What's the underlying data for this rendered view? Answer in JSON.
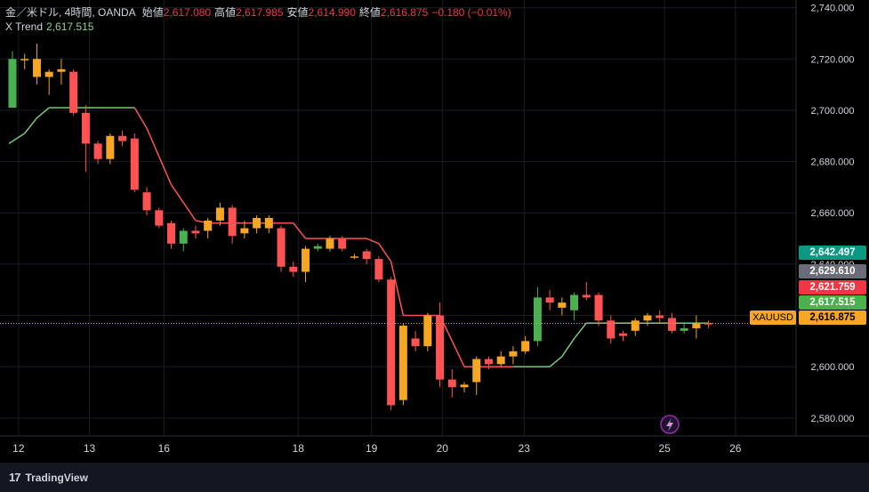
{
  "legend": {
    "symbol_title": "金／米ドル, 4時間, OANDA",
    "open_label": "始値",
    "open": "2,617.080",
    "high_label": "高値",
    "high": "2,617.985",
    "low_label": "安値",
    "low": "2,614.990",
    "close_label": "終値",
    "close": "2,616.875",
    "change": "−0.180 (−0.01%)",
    "indicator_name": "X Trend",
    "indicator_value": "2,617.515"
  },
  "price_labels": {
    "green": "2,642.497",
    "gray": "2,629.610",
    "red": "2,621.759",
    "trend": "2,617.515",
    "last": "2,616.875",
    "symbol": "XAUUSD"
  },
  "brand": {
    "logo": "17",
    "name": "TradingView"
  },
  "colors": {
    "up": "#4caf50",
    "down": "#ff5252",
    "neutral": "#f5a623",
    "trend_up": "#7bc97a",
    "trend_down": "#ff5252",
    "label_green": "#0b9981",
    "label_gray": "#6a6d78",
    "label_red": "#f23645",
    "label_trend": "#4caf50",
    "label_last": "#f5a623"
  },
  "chart_data": {
    "type": "candlestick",
    "ylim": [
      2573,
      2743
    ],
    "yticks": [
      2580,
      2600,
      2620,
      2640,
      2660,
      2680,
      2700,
      2720,
      2740
    ],
    "ytick_labels": [
      "2,580.000",
      "2,600.000",
      "2,620.000",
      "2,640.000",
      "2,660.000",
      "2,680.000",
      "2,700.000",
      "2,720.000",
      "2,740.000"
    ],
    "x_tick_labels": [
      {
        "label": "12",
        "index": 0.5
      },
      {
        "label": "13",
        "index": 6.3
      },
      {
        "label": "16",
        "index": 12.4
      },
      {
        "label": "18",
        "index": 23.4
      },
      {
        "label": "19",
        "index": 29.4
      },
      {
        "label": "20",
        "index": 35.2
      },
      {
        "label": "23",
        "index": 41.9
      },
      {
        "label": "25",
        "index": 53.4
      },
      {
        "label": "26",
        "index": 59.2
      }
    ],
    "candles": [
      {
        "o": 2701,
        "h": 2723,
        "l": 2701,
        "c": 2720,
        "k": "up"
      },
      {
        "o": 2720,
        "h": 2722,
        "l": 2716,
        "c": 2720,
        "k": "neutral"
      },
      {
        "o": 2720,
        "h": 2726,
        "l": 2710,
        "c": 2713,
        "k": "neutral"
      },
      {
        "o": 2713,
        "h": 2716,
        "l": 2706,
        "c": 2715,
        "k": "neutral"
      },
      {
        "o": 2715,
        "h": 2720,
        "l": 2710,
        "c": 2716,
        "k": "neutral"
      },
      {
        "o": 2715,
        "h": 2716,
        "l": 2698,
        "c": 2699,
        "k": "down"
      },
      {
        "o": 2699,
        "h": 2702,
        "l": 2676,
        "c": 2687,
        "k": "down"
      },
      {
        "o": 2687,
        "h": 2688,
        "l": 2679,
        "c": 2681,
        "k": "down"
      },
      {
        "o": 2681,
        "h": 2691,
        "l": 2679,
        "c": 2690,
        "k": "neutral"
      },
      {
        "o": 2690,
        "h": 2692,
        "l": 2686,
        "c": 2688,
        "k": "down"
      },
      {
        "o": 2689,
        "h": 2691,
        "l": 2668,
        "c": 2669,
        "k": "down"
      },
      {
        "o": 2668,
        "h": 2670,
        "l": 2659,
        "c": 2661,
        "k": "down"
      },
      {
        "o": 2661,
        "h": 2662,
        "l": 2654,
        "c": 2655,
        "k": "down"
      },
      {
        "o": 2656,
        "h": 2657,
        "l": 2646,
        "c": 2648,
        "k": "down"
      },
      {
        "o": 2648,
        "h": 2654,
        "l": 2645,
        "c": 2653,
        "k": "up"
      },
      {
        "o": 2652,
        "h": 2655,
        "l": 2650,
        "c": 2653,
        "k": "down"
      },
      {
        "o": 2653,
        "h": 2658,
        "l": 2650,
        "c": 2657,
        "k": "neutral"
      },
      {
        "o": 2657,
        "h": 2664,
        "l": 2655,
        "c": 2662,
        "k": "neutral"
      },
      {
        "o": 2662,
        "h": 2663,
        "l": 2648,
        "c": 2651,
        "k": "down"
      },
      {
        "o": 2652,
        "h": 2657,
        "l": 2650,
        "c": 2654,
        "k": "neutral"
      },
      {
        "o": 2654,
        "h": 2659,
        "l": 2652,
        "c": 2658,
        "k": "neutral"
      },
      {
        "o": 2658,
        "h": 2659,
        "l": 2652,
        "c": 2654,
        "k": "neutral"
      },
      {
        "o": 2654,
        "h": 2655,
        "l": 2637,
        "c": 2639,
        "k": "down"
      },
      {
        "o": 2639,
        "h": 2641,
        "l": 2635,
        "c": 2637,
        "k": "down"
      },
      {
        "o": 2637,
        "h": 2647,
        "l": 2633,
        "c": 2646,
        "k": "neutral"
      },
      {
        "o": 2647,
        "h": 2648,
        "l": 2645,
        "c": 2646,
        "k": "up"
      },
      {
        "o": 2646,
        "h": 2651,
        "l": 2645,
        "c": 2650,
        "k": "neutral"
      },
      {
        "o": 2650,
        "h": 2651,
        "l": 2645,
        "c": 2646,
        "k": "down"
      },
      {
        "o": 2643,
        "h": 2644,
        "l": 2642,
        "c": 2643,
        "k": "neutral"
      },
      {
        "o": 2645,
        "h": 2646,
        "l": 2640,
        "c": 2642,
        "k": "down"
      },
      {
        "o": 2642,
        "h": 2643,
        "l": 2633,
        "c": 2634,
        "k": "down"
      },
      {
        "o": 2634,
        "h": 2635,
        "l": 2583,
        "c": 2585,
        "k": "down"
      },
      {
        "o": 2587,
        "h": 2617,
        "l": 2585,
        "c": 2616,
        "k": "neutral"
      },
      {
        "o": 2611,
        "h": 2614,
        "l": 2606,
        "c": 2608,
        "k": "down"
      },
      {
        "o": 2608,
        "h": 2621,
        "l": 2606,
        "c": 2620,
        "k": "neutral"
      },
      {
        "o": 2620,
        "h": 2625,
        "l": 2592,
        "c": 2595,
        "k": "down"
      },
      {
        "o": 2595,
        "h": 2599,
        "l": 2588,
        "c": 2592,
        "k": "down"
      },
      {
        "o": 2592,
        "h": 2594,
        "l": 2590,
        "c": 2593,
        "k": "neutral"
      },
      {
        "o": 2594,
        "h": 2604,
        "l": 2589,
        "c": 2603,
        "k": "neutral"
      },
      {
        "o": 2603,
        "h": 2604,
        "l": 2599,
        "c": 2601,
        "k": "down"
      },
      {
        "o": 2601,
        "h": 2606,
        "l": 2600,
        "c": 2604,
        "k": "neutral"
      },
      {
        "o": 2604,
        "h": 2608,
        "l": 2601,
        "c": 2606,
        "k": "neutral"
      },
      {
        "o": 2606,
        "h": 2612,
        "l": 2605,
        "c": 2610,
        "k": "neutral"
      },
      {
        "o": 2610,
        "h": 2631,
        "l": 2608,
        "c": 2627,
        "k": "up"
      },
      {
        "o": 2627,
        "h": 2630,
        "l": 2622,
        "c": 2625,
        "k": "down"
      },
      {
        "o": 2625,
        "h": 2627,
        "l": 2620,
        "c": 2623,
        "k": "neutral"
      },
      {
        "o": 2622,
        "h": 2629,
        "l": 2618,
        "c": 2628,
        "k": "up"
      },
      {
        "o": 2628,
        "h": 2633,
        "l": 2626,
        "c": 2627,
        "k": "down"
      },
      {
        "o": 2628,
        "h": 2629,
        "l": 2616,
        "c": 2618,
        "k": "down"
      },
      {
        "o": 2618,
        "h": 2620,
        "l": 2609,
        "c": 2611,
        "k": "down"
      },
      {
        "o": 2612,
        "h": 2614,
        "l": 2610,
        "c": 2613,
        "k": "down"
      },
      {
        "o": 2614,
        "h": 2619,
        "l": 2612,
        "c": 2618,
        "k": "neutral"
      },
      {
        "o": 2618,
        "h": 2621,
        "l": 2616,
        "c": 2620,
        "k": "neutral"
      },
      {
        "o": 2620,
        "h": 2622,
        "l": 2617,
        "c": 2619,
        "k": "down"
      },
      {
        "o": 2619,
        "h": 2621,
        "l": 2613,
        "c": 2614,
        "k": "down"
      },
      {
        "o": 2614,
        "h": 2617,
        "l": 2613,
        "c": 2615,
        "k": "up"
      },
      {
        "o": 2615,
        "h": 2620,
        "l": 2611,
        "c": 2617,
        "k": "neutral"
      },
      {
        "o": 2617,
        "h": 2618,
        "l": 2615,
        "c": 2617,
        "k": "down"
      }
    ],
    "trend_line": [
      {
        "i": 0,
        "v": 2687,
        "k": "up"
      },
      {
        "i": 1,
        "v": 2691,
        "k": "up"
      },
      {
        "i": 2,
        "v": 2697,
        "k": "up"
      },
      {
        "i": 3,
        "v": 2701,
        "k": "up"
      },
      {
        "i": 4,
        "v": 2701,
        "k": "up"
      },
      {
        "i": 5,
        "v": 2701,
        "k": "up"
      },
      {
        "i": 6,
        "v": 2701,
        "k": "up"
      },
      {
        "i": 7,
        "v": 2701,
        "k": "up"
      },
      {
        "i": 8,
        "v": 2701,
        "k": "up"
      },
      {
        "i": 9,
        "v": 2701,
        "k": "up"
      },
      {
        "i": 10,
        "v": 2701,
        "k": "down"
      },
      {
        "i": 11,
        "v": 2693,
        "k": "down"
      },
      {
        "i": 12,
        "v": 2682,
        "k": "down"
      },
      {
        "i": 13,
        "v": 2671,
        "k": "down"
      },
      {
        "i": 14,
        "v": 2664,
        "k": "down"
      },
      {
        "i": 15,
        "v": 2657,
        "k": "down"
      },
      {
        "i": 16,
        "v": 2656,
        "k": "down"
      },
      {
        "i": 17,
        "v": 2656,
        "k": "down"
      },
      {
        "i": 18,
        "v": 2656,
        "k": "down"
      },
      {
        "i": 19,
        "v": 2656,
        "k": "down"
      },
      {
        "i": 20,
        "v": 2656,
        "k": "down"
      },
      {
        "i": 21,
        "v": 2656,
        "k": "down"
      },
      {
        "i": 22,
        "v": 2656,
        "k": "down"
      },
      {
        "i": 23,
        "v": 2656,
        "k": "down"
      },
      {
        "i": 24,
        "v": 2650,
        "k": "down"
      },
      {
        "i": 25,
        "v": 2650,
        "k": "down"
      },
      {
        "i": 26,
        "v": 2650,
        "k": "down"
      },
      {
        "i": 27,
        "v": 2650,
        "k": "down"
      },
      {
        "i": 28,
        "v": 2650,
        "k": "down"
      },
      {
        "i": 29,
        "v": 2650,
        "k": "down"
      },
      {
        "i": 30,
        "v": 2648,
        "k": "down"
      },
      {
        "i": 31,
        "v": 2641,
        "k": "down"
      },
      {
        "i": 32,
        "v": 2620,
        "k": "down"
      },
      {
        "i": 33,
        "v": 2620,
        "k": "down"
      },
      {
        "i": 34,
        "v": 2620,
        "k": "down"
      },
      {
        "i": 35,
        "v": 2620,
        "k": "down"
      },
      {
        "i": 36,
        "v": 2610,
        "k": "down"
      },
      {
        "i": 37,
        "v": 2600,
        "k": "down"
      },
      {
        "i": 38,
        "v": 2600,
        "k": "down"
      },
      {
        "i": 39,
        "v": 2600,
        "k": "down"
      },
      {
        "i": 40,
        "v": 2600,
        "k": "down"
      },
      {
        "i": 41,
        "v": 2600,
        "k": "up"
      },
      {
        "i": 42,
        "v": 2600,
        "k": "up"
      },
      {
        "i": 43,
        "v": 2600,
        "k": "up"
      },
      {
        "i": 44,
        "v": 2600,
        "k": "up"
      },
      {
        "i": 45,
        "v": 2604,
        "k": "up"
      },
      {
        "i": 46,
        "v": 2611,
        "k": "up"
      },
      {
        "i": 47,
        "v": 2617,
        "k": "up"
      },
      {
        "i": 48,
        "v": 2617,
        "k": "up"
      },
      {
        "i": 49,
        "v": 2617,
        "k": "up"
      },
      {
        "i": 50,
        "v": 2617,
        "k": "up"
      },
      {
        "i": 51,
        "v": 2617,
        "k": "up"
      },
      {
        "i": 52,
        "v": 2617,
        "k": "up"
      },
      {
        "i": 53,
        "v": 2617,
        "k": "up"
      },
      {
        "i": 54,
        "v": 2617,
        "k": "up"
      },
      {
        "i": 55,
        "v": 2617,
        "k": "up"
      },
      {
        "i": 56,
        "v": 2617,
        "k": "up"
      },
      {
        "i": 57,
        "v": 2617,
        "k": "up"
      }
    ],
    "last_price": 2616.875
  }
}
